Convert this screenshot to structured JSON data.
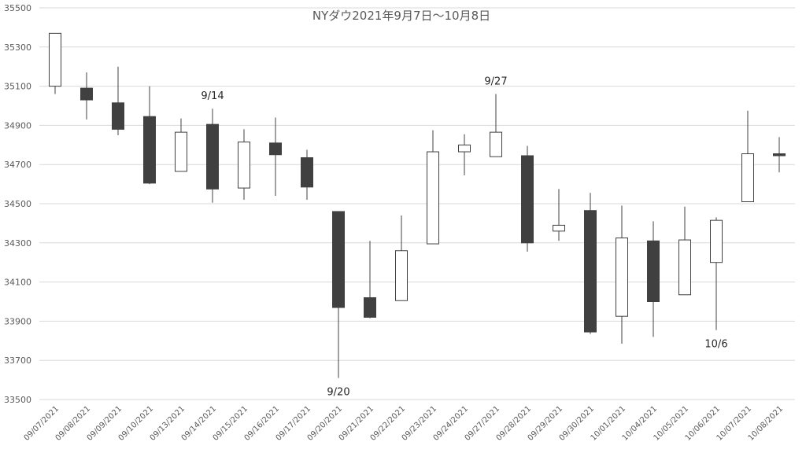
{
  "chart_data": {
    "type": "candlestick",
    "title": "NYダウ2021年9月7日～10月8日",
    "xlabel": "",
    "ylabel": "",
    "ylim": [
      33500,
      35500
    ],
    "yticks": [
      33500,
      33700,
      33900,
      34100,
      34300,
      34500,
      34700,
      34900,
      35100,
      35300,
      35500
    ],
    "grid": true,
    "legend": "none",
    "colors": {
      "up": "#ffffff",
      "down": "#404040",
      "outline": "#404040",
      "grid": "#d9d9d9"
    },
    "categories": [
      "09/07/2021",
      "09/08/2021",
      "09/09/2021",
      "09/10/2021",
      "09/13/2021",
      "09/14/2021",
      "09/15/2021",
      "09/16/2021",
      "09/17/2021",
      "09/20/2021",
      "09/21/2021",
      "09/22/2021",
      "09/23/2021",
      "09/24/2021",
      "09/27/2021",
      "09/28/2021",
      "09/29/2021",
      "09/30/2021",
      "10/01/2021",
      "10/04/2021",
      "10/05/2021",
      "10/06/2021",
      "10/07/2021",
      "10/08/2021"
    ],
    "open": [
      35100,
      35090,
      35015,
      34945,
      34665,
      34905,
      34580,
      34810,
      34735,
      34460,
      34020,
      34005,
      34295,
      34765,
      34740,
      34745,
      34360,
      34465,
      33925,
      34310,
      34035,
      34200,
      34510,
      34755
    ],
    "high": [
      35370,
      35170,
      35200,
      35100,
      34935,
      34985,
      34880,
      34940,
      34775,
      34460,
      34310,
      34440,
      34875,
      34855,
      35060,
      34795,
      34575,
      34555,
      34490,
      34410,
      34485,
      34430,
      34975,
      34840
    ],
    "low": [
      35060,
      34930,
      34850,
      34600,
      34665,
      34505,
      34520,
      34540,
      34520,
      33610,
      33915,
      34005,
      34295,
      34645,
      34740,
      34255,
      34310,
      33835,
      33785,
      33820,
      34035,
      33855,
      34510,
      34660
    ],
    "close": [
      35370,
      35030,
      34880,
      34605,
      34865,
      34575,
      34815,
      34750,
      34585,
      33970,
      33920,
      34260,
      34765,
      34800,
      34865,
      34300,
      34390,
      33845,
      34325,
      34000,
      34315,
      34415,
      34755,
      34745
    ],
    "annotations": [
      {
        "index": 5,
        "text": "9/14",
        "anchor": "above"
      },
      {
        "index": 9,
        "text": "9/20",
        "anchor": "below"
      },
      {
        "index": 14,
        "text": "9/27",
        "anchor": "above"
      },
      {
        "index": 21,
        "text": "10/6",
        "anchor": "below"
      }
    ]
  }
}
